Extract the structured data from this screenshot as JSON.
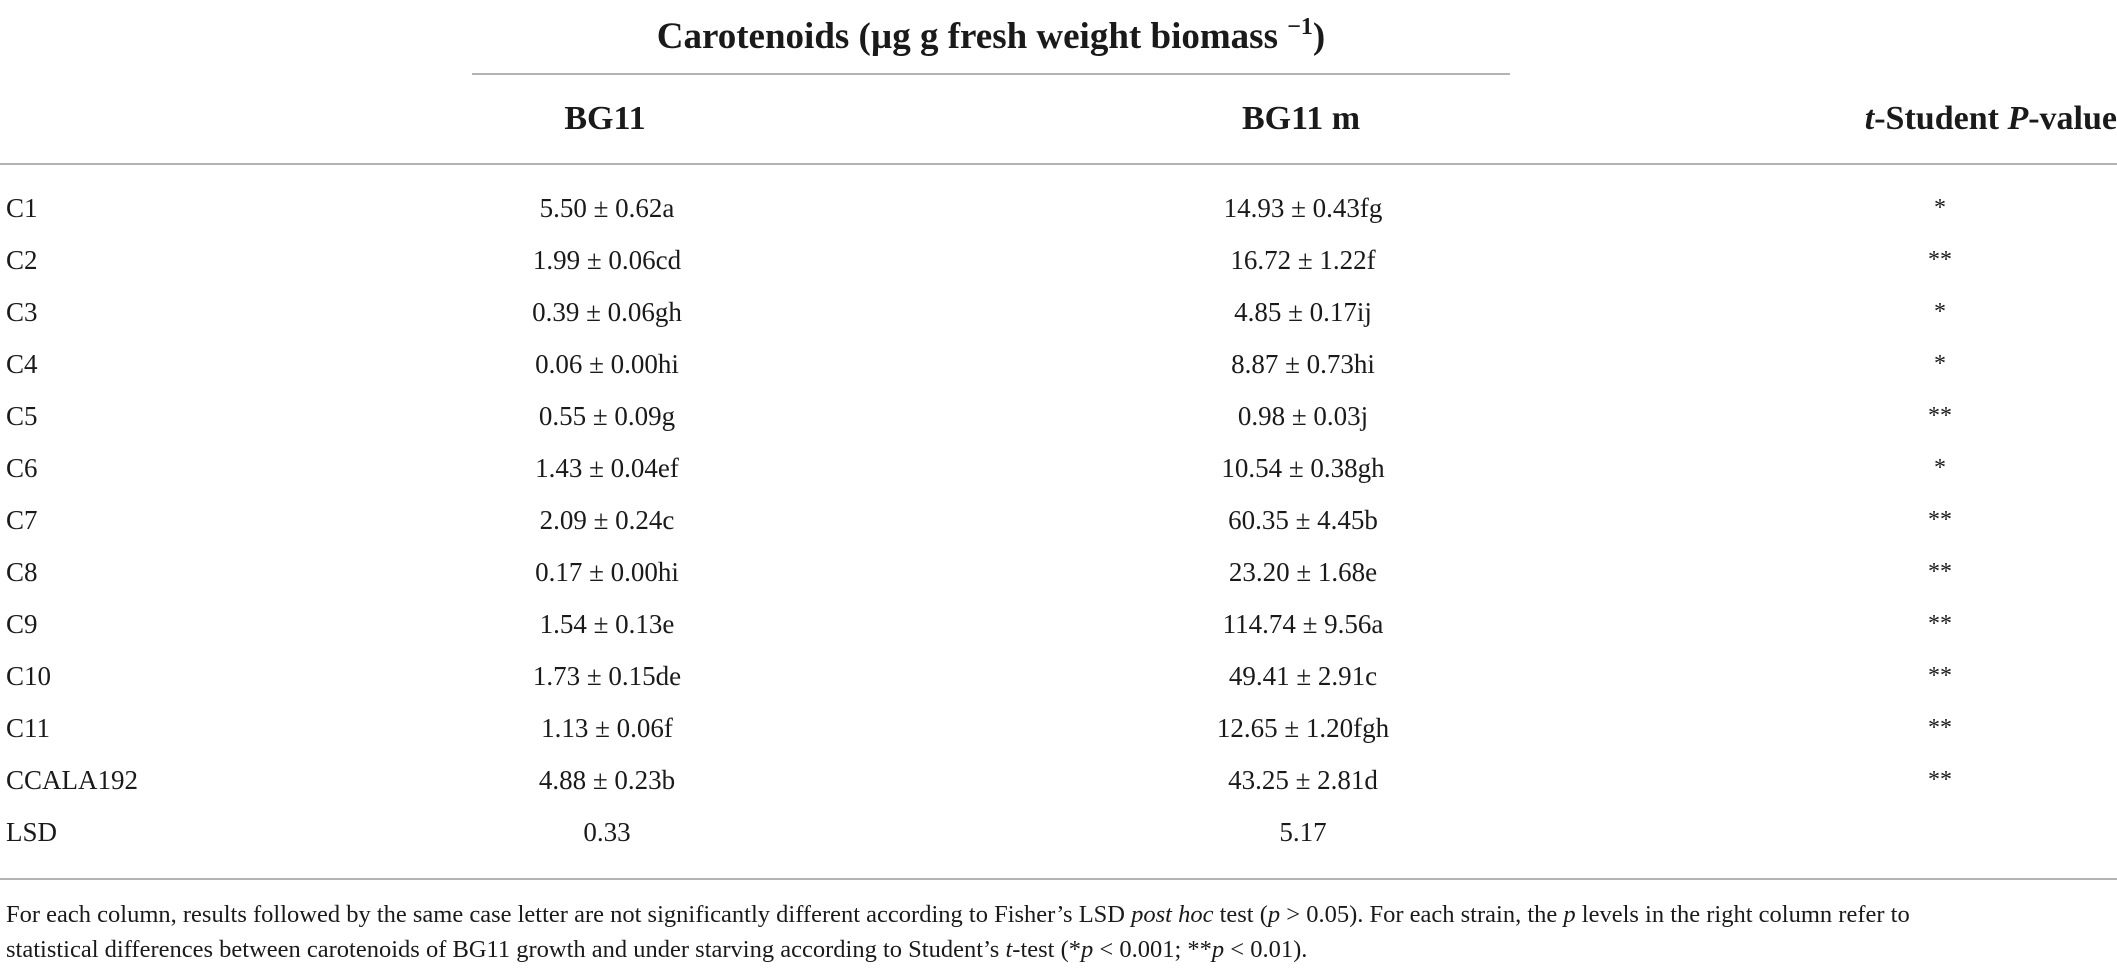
{
  "table": {
    "super_header": {
      "text": "Carotenoids (µg g fresh weight biomass",
      "exponent": "−1",
      "close": ")"
    },
    "columns": {
      "bg11": "BG11",
      "bg11m": "BG11 m",
      "pvalue_italic_t": "t",
      "pvalue_mid": "-Student ",
      "pvalue_italic_p": "P",
      "pvalue_end": "-value"
    },
    "rows": [
      {
        "strain": "C1",
        "bg11": "5.50 ± 0.62a",
        "bg11m": "14.93 ± 0.43fg",
        "sig": "*"
      },
      {
        "strain": "C2",
        "bg11": "1.99 ± 0.06cd",
        "bg11m": "16.72 ± 1.22f",
        "sig": "**"
      },
      {
        "strain": "C3",
        "bg11": "0.39 ± 0.06gh",
        "bg11m": "4.85 ± 0.17ij",
        "sig": "*"
      },
      {
        "strain": "C4",
        "bg11": "0.06 ± 0.00hi",
        "bg11m": "8.87 ± 0.73hi",
        "sig": "*"
      },
      {
        "strain": "C5",
        "bg11": "0.55 ± 0.09g",
        "bg11m": "0.98 ± 0.03j",
        "sig": "**"
      },
      {
        "strain": "C6",
        "bg11": "1.43 ± 0.04ef",
        "bg11m": "10.54 ± 0.38gh",
        "sig": "*"
      },
      {
        "strain": "C7",
        "bg11": "2.09 ± 0.24c",
        "bg11m": "60.35 ± 4.45b",
        "sig": "**"
      },
      {
        "strain": "C8",
        "bg11": "0.17 ± 0.00hi",
        "bg11m": "23.20 ± 1.68e",
        "sig": "**"
      },
      {
        "strain": "C9",
        "bg11": "1.54 ± 0.13e",
        "bg11m": "114.74 ± 9.56a",
        "sig": "**"
      },
      {
        "strain": "C10",
        "bg11": "1.73 ± 0.15de",
        "bg11m": "49.41 ± 2.91c",
        "sig": "**"
      },
      {
        "strain": "C11",
        "bg11": "1.13 ± 0.06f",
        "bg11m": "12.65 ± 1.20fgh",
        "sig": "**"
      },
      {
        "strain": "CCALA192",
        "bg11": "4.88 ± 0.23b",
        "bg11m": "43.25 ± 2.81d",
        "sig": "**"
      },
      {
        "strain": "LSD",
        "bg11": "0.33",
        "bg11m": "5.17",
        "sig": ""
      }
    ]
  },
  "footnote": {
    "l1_a": "For each column, results followed by the same case letter are not significantly different according to Fisher’s LSD ",
    "l1_italic_posthoc": "post hoc",
    "l1_b": " test (",
    "l1_italic_p1": "p",
    "l1_c": " > 0.05). For each strain, the ",
    "l1_italic_p2": "p",
    "l1_d": " levels in the right column refer to",
    "l2_a": "statistical differences between carotenoids of BG11 growth and under starving according to Student’s ",
    "l2_italic_t": "t",
    "l2_b": "-test (*",
    "l2_italic_p1": "p",
    "l2_c": " < 0.001; **",
    "l2_italic_p2": "p",
    "l2_d": " < 0.01)."
  }
}
